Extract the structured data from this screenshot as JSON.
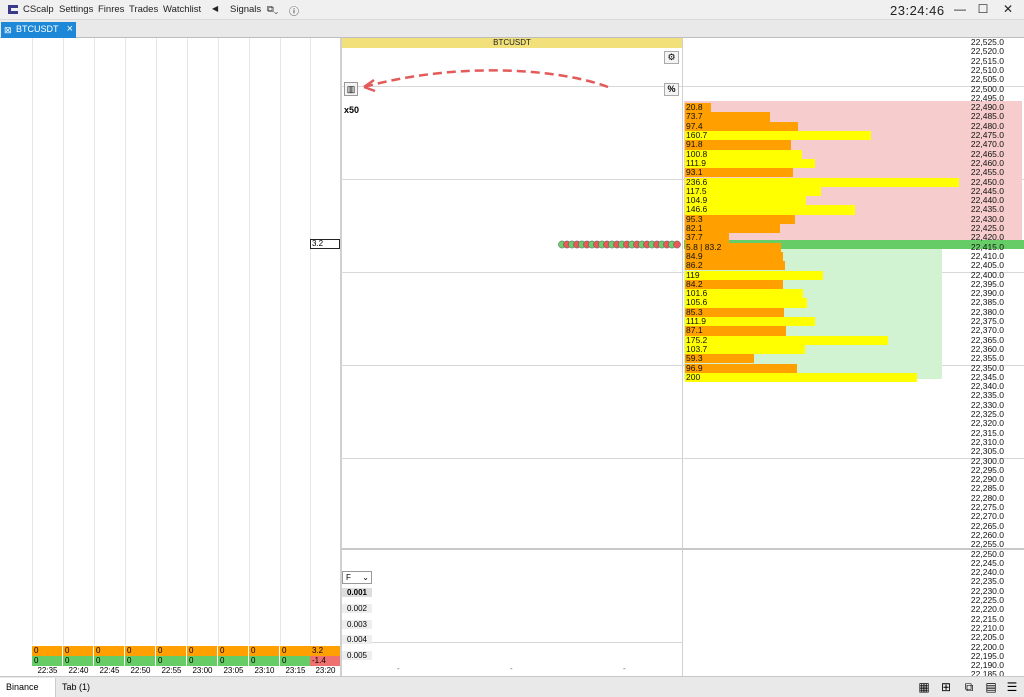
{
  "titlebar": {
    "app_name": "CScalp",
    "menu": [
      "Settings",
      "Finres",
      "Trades",
      "Watchlist"
    ],
    "signals": "Signals",
    "clock": "23:24:46",
    "minimize": "—",
    "maximize": "☐",
    "close": "✕"
  },
  "tab": {
    "label": "BTCUSDT",
    "close": "×"
  },
  "trade_panel": {
    "symbol": "BTCUSDT",
    "multiplier": "x50",
    "price_label": "3.2",
    "filter_select": "F",
    "scale_values": [
      "0.001",
      "0.002",
      "0.003",
      "0.004",
      "0.005"
    ]
  },
  "orderbook": {
    "prices": [
      "22,525.0",
      "22,520.0",
      "22,515.0",
      "22,510.0",
      "22,505.0",
      "22,500.0",
      "22,495.0",
      "22,490.0",
      "22,485.0",
      "22,480.0",
      "22,475.0",
      "22,470.0",
      "22,465.0",
      "22,460.0",
      "22,455.0",
      "22,450.0",
      "22,445.0",
      "22,440.0",
      "22,435.0",
      "22,430.0",
      "22,425.0",
      "22,420.0",
      "22,415.0",
      "22,410.0",
      "22,405.0",
      "22,400.0",
      "22,395.0",
      "22,390.0",
      "22,385.0",
      "22,380.0",
      "22,375.0",
      "22,370.0",
      "22,365.0",
      "22,360.0",
      "22,355.0",
      "22,350.0",
      "22,345.0",
      "22,340.0",
      "22,335.0",
      "22,330.0",
      "22,325.0",
      "22,320.0",
      "22,315.0",
      "22,310.0",
      "22,305.0",
      "22,300.0",
      "22,295.0",
      "22,290.0",
      "22,285.0",
      "22,280.0",
      "22,275.0",
      "22,270.0",
      "22,265.0",
      "22,260.0",
      "22,255.0",
      "22,250.0",
      "22,245.0",
      "22,240.0",
      "22,235.0",
      "22,230.0",
      "22,225.0",
      "22,220.0",
      "22,215.0",
      "22,210.0",
      "22,205.0",
      "22,200.0",
      "22,195.0",
      "22,190.0",
      "22,185.0"
    ],
    "volumes": [
      {
        "row": 7,
        "text": "20.8",
        "value": 20.8,
        "color": "#ffa000"
      },
      {
        "row": 8,
        "text": "73.7",
        "value": 73.7,
        "color": "#ffa000"
      },
      {
        "row": 9,
        "text": "97.4",
        "value": 97.4,
        "color": "#ffa000"
      },
      {
        "row": 10,
        "text": "160.7",
        "value": 160.7,
        "color": "#ffff00"
      },
      {
        "row": 11,
        "text": "91.8",
        "value": 91.8,
        "color": "#ffa000"
      },
      {
        "row": 12,
        "text": "100.8",
        "value": 100.8,
        "color": "#ffff00"
      },
      {
        "row": 13,
        "text": "111.9",
        "value": 111.9,
        "color": "#ffff00"
      },
      {
        "row": 14,
        "text": "93.1",
        "value": 93.1,
        "color": "#ffa000"
      },
      {
        "row": 15,
        "text": "236.6",
        "value": 236.6,
        "color": "#ffff00"
      },
      {
        "row": 16,
        "text": "117.5",
        "value": 117.5,
        "color": "#ffff00"
      },
      {
        "row": 17,
        "text": "104.9",
        "value": 104.9,
        "color": "#ffff00"
      },
      {
        "row": 18,
        "text": "146.6",
        "value": 146.6,
        "color": "#ffff00"
      },
      {
        "row": 19,
        "text": "95.3",
        "value": 95.3,
        "color": "#ffa000"
      },
      {
        "row": 20,
        "text": "82.1",
        "value": 82.1,
        "color": "#ffa000"
      },
      {
        "row": 21,
        "text": "37.7",
        "value": 37.7,
        "color": "#ffa000"
      },
      {
        "row": 22,
        "text": "5.8 | 83.2",
        "value": 83.2,
        "color": "#ffa000"
      },
      {
        "row": 23,
        "text": "84.9",
        "value": 84.9,
        "color": "#ffa000"
      },
      {
        "row": 24,
        "text": "86.2",
        "value": 86.2,
        "color": "#ffa000"
      },
      {
        "row": 25,
        "text": "119",
        "value": 119,
        "color": "#ffff00"
      },
      {
        "row": 26,
        "text": "84.2",
        "value": 84.2,
        "color": "#ffa000"
      },
      {
        "row": 27,
        "text": "101.6",
        "value": 101.6,
        "color": "#ffff00"
      },
      {
        "row": 28,
        "text": "105.6",
        "value": 105.6,
        "color": "#ffff00"
      },
      {
        "row": 29,
        "text": "85.3",
        "value": 85.3,
        "color": "#ffa000"
      },
      {
        "row": 30,
        "text": "111.9",
        "value": 111.9,
        "color": "#ffff00"
      },
      {
        "row": 31,
        "text": "87.1",
        "value": 87.1,
        "color": "#ffa000"
      },
      {
        "row": 32,
        "text": "175.2",
        "value": 175.2,
        "color": "#ffff00"
      },
      {
        "row": 33,
        "text": "103.7",
        "value": 103.7,
        "color": "#ffff00"
      },
      {
        "row": 34,
        "text": "59.3",
        "value": 59.3,
        "color": "#ffa000"
      },
      {
        "row": 35,
        "text": "96.9",
        "value": 96.9,
        "color": "#ffa000"
      },
      {
        "row": 36,
        "text": "200",
        "value": 200,
        "color": "#ffff00"
      }
    ]
  },
  "clusters": {
    "row1": [
      "0",
      "0",
      "0",
      "0",
      "0",
      "0",
      "0",
      "0",
      "0",
      "3.2"
    ],
    "row2": [
      "0",
      "0",
      "0",
      "0",
      "0",
      "0",
      "0",
      "0",
      "0",
      "-1.4"
    ],
    "times": [
      "22:35",
      "22:40",
      "22:45",
      "22:50",
      "22:55",
      "23:00",
      "23:05",
      "23:10",
      "23:15",
      "23:20"
    ]
  },
  "statusbar": {
    "tabs": [
      "Binance",
      "Tab (1)"
    ]
  },
  "colors": {
    "accent": "#1e88d8",
    "ask_bg": "#f6cccc",
    "bid_bg": "#d2f3d2",
    "mid": "#66cc66",
    "orange": "#ffa000",
    "yellow": "#ffff00"
  }
}
